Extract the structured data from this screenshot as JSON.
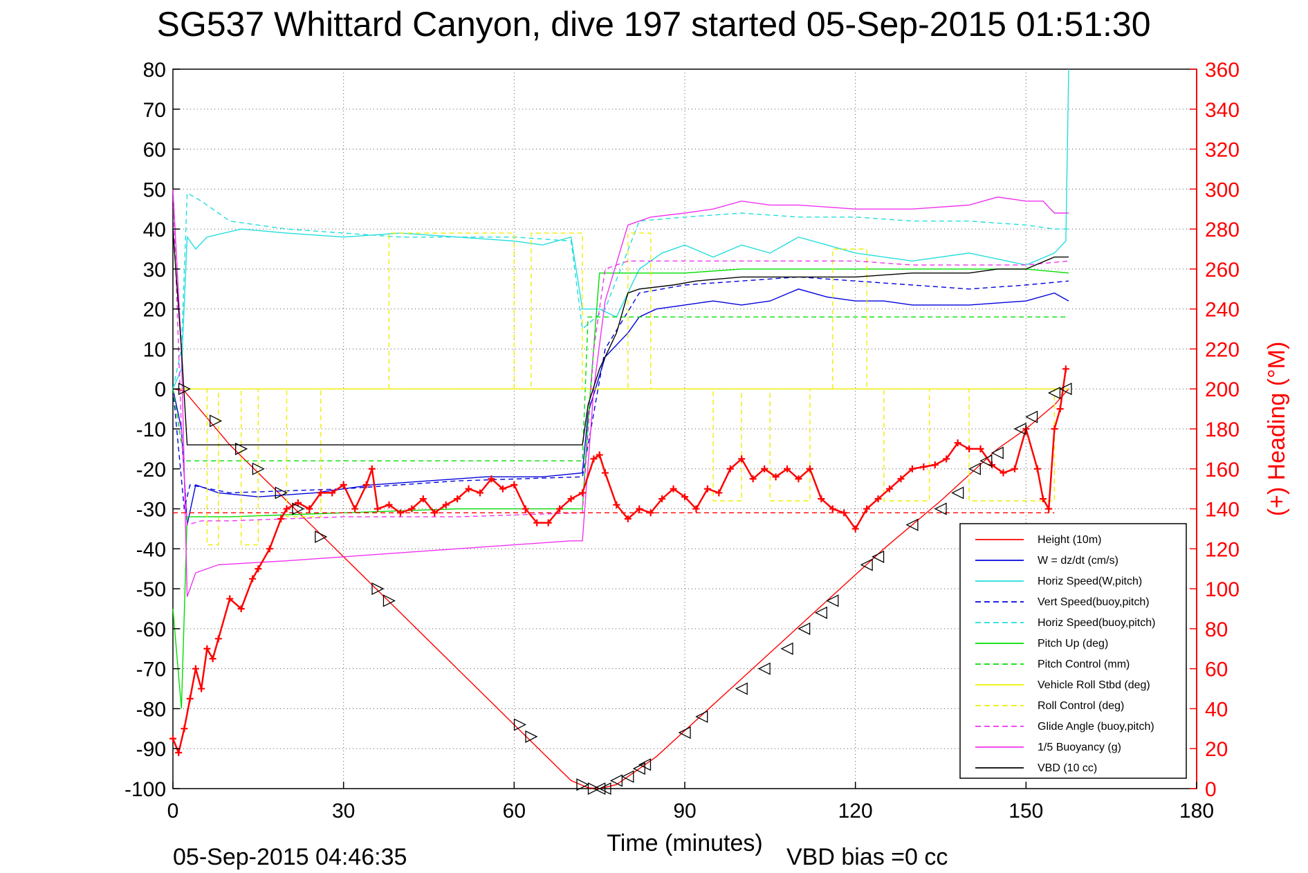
{
  "title": "SG537 Whittard Canyon, dive 197 started 05-Sep-2015 01:51:30",
  "footer": {
    "timestamp": "05-Sep-2015 04:46:35",
    "vbd_bias": "VBD bias =0 cc"
  },
  "chart_data": {
    "type": "line",
    "title": "SG537 Whittard Canyon, dive 197 started 05-Sep-2015 01:51:30",
    "xlabel": "Time (minutes)",
    "ylabel": "",
    "y2label": "(+) Heading (°M)",
    "xlim": [
      0,
      180
    ],
    "ylim": [
      -100,
      80
    ],
    "y2lim": [
      0,
      360
    ],
    "grid": true,
    "legend_position": "bottom-right",
    "x_ticks": [
      "0",
      "30",
      "60",
      "90",
      "120",
      "150",
      "180"
    ],
    "y_ticks": [
      "80",
      "70",
      "60",
      "50",
      "40",
      "30",
      "20",
      "10",
      "0",
      "-10",
      "-20",
      "-30",
      "-40",
      "-50",
      "-60",
      "-70",
      "-80",
      "-90",
      "-100"
    ],
    "y2_ticks": [
      "360",
      "340",
      "320",
      "300",
      "280",
      "260",
      "240",
      "220",
      "200",
      "180",
      "160",
      "140",
      "120",
      "100",
      "80",
      "60",
      "40",
      "20",
      "0"
    ],
    "series": [
      {
        "name": "Height (10m)",
        "color": "#ff0000",
        "dash": "solid",
        "axis": "left",
        "x": [
          0,
          2,
          10,
          20,
          30,
          40,
          50,
          60,
          65,
          70,
          73,
          75,
          78,
          85,
          95,
          105,
          115,
          125,
          135,
          145,
          150,
          155,
          157.5
        ],
        "y": [
          0,
          -0.5,
          -14,
          -28,
          -42,
          -56,
          -70,
          -84,
          -91,
          -98,
          -99.8,
          -100,
          -99,
          -92,
          -79,
          -66,
          -53,
          -40,
          -28,
          -15,
          -10,
          -4,
          0
        ]
      },
      {
        "name": "W = dz/dt (cm/s)",
        "color": "#0000dd",
        "dash": "solid",
        "axis": "left",
        "x": [
          0,
          1.5,
          2.5,
          4,
          8,
          15,
          25,
          35,
          45,
          55,
          65,
          72,
          73,
          76,
          80,
          82,
          85,
          90,
          95,
          100,
          105,
          110,
          115,
          120,
          125,
          130,
          140,
          150,
          155,
          157.5
        ],
        "y": [
          0,
          -10,
          -34,
          -24,
          -26,
          -27,
          -26,
          -24,
          -23,
          -22,
          -22,
          -21,
          -6,
          8,
          14,
          18,
          20,
          21,
          22,
          21,
          22,
          25,
          23,
          22,
          22,
          21,
          21,
          22,
          24,
          22
        ]
      },
      {
        "name": "Horiz Speed(W,pitch)",
        "color": "#22dddd",
        "dash": "solid",
        "axis": "left",
        "x": [
          0,
          1.5,
          2.5,
          4,
          6,
          12,
          20,
          30,
          40,
          50,
          60,
          65,
          70,
          72,
          75,
          78,
          82,
          86,
          90,
          95,
          100,
          105,
          110,
          115,
          120,
          130,
          140,
          150,
          155,
          157,
          157.5
        ],
        "y": [
          0,
          5,
          38,
          35,
          38,
          40,
          39,
          38,
          39,
          38,
          37,
          36,
          38,
          20,
          20,
          18,
          30,
          34,
          36,
          33,
          36,
          34,
          38,
          36,
          34,
          32,
          34,
          31,
          34,
          37,
          80
        ]
      },
      {
        "name": "Vert Speed(buoy,pitch)",
        "color": "#0000dd",
        "dash": "dashed",
        "axis": "left",
        "x": [
          0,
          2,
          3,
          10,
          30,
          50,
          72,
          76,
          82,
          90,
          100,
          110,
          120,
          130,
          140,
          150,
          157.5
        ],
        "y": [
          0,
          -30,
          -24,
          -26,
          -25,
          -23,
          -22,
          10,
          24,
          26,
          27,
          28,
          27,
          26,
          25,
          26,
          27
        ]
      },
      {
        "name": "Horiz Speed(buoy,pitch)",
        "color": "#22dddd",
        "dash": "dashed",
        "axis": "left",
        "x": [
          0,
          1.5,
          2.5,
          5,
          10,
          20,
          30,
          40,
          50,
          60,
          70,
          72,
          76,
          82,
          90,
          100,
          110,
          120,
          130,
          140,
          150,
          155,
          157.5
        ],
        "y": [
          0,
          10,
          49,
          47,
          42,
          40,
          39,
          38,
          38,
          38,
          37,
          15,
          20,
          42,
          43,
          44,
          43,
          43,
          42,
          42,
          41,
          40,
          40
        ]
      },
      {
        "name": "Pitch Up (deg)",
        "color": "#00dd00",
        "dash": "solid",
        "axis": "left",
        "x": [
          0,
          1.5,
          2.5,
          5,
          10,
          30,
          50,
          72,
          73,
          75,
          80,
          90,
          100,
          110,
          120,
          130,
          140,
          150,
          157.5
        ],
        "y": [
          -55,
          -80,
          -32,
          -32,
          -32,
          -31,
          -30,
          -30,
          -8,
          29,
          29,
          29,
          30,
          30,
          30,
          30,
          30,
          30,
          29
        ]
      },
      {
        "name": "Pitch Control (mm)",
        "color": "#00dd00",
        "dash": "dashed",
        "axis": "left",
        "x": [
          0,
          2,
          3,
          10,
          30,
          50,
          72,
          73,
          80,
          100,
          120,
          140,
          157.5
        ],
        "y": [
          0,
          -18,
          -18,
          -18,
          -18,
          -18,
          -18,
          18,
          18,
          18,
          18,
          18,
          18
        ]
      },
      {
        "name": "Vehicle Roll Stbd (deg)",
        "color": "#eeee00",
        "dash": "solid",
        "axis": "left",
        "x": [
          0,
          10,
          30,
          60,
          72,
          75,
          90,
          120,
          150,
          157.5
        ],
        "y": [
          0,
          0,
          0,
          0,
          0,
          0,
          0,
          0,
          0,
          0
        ]
      },
      {
        "name": "Roll Control (deg)",
        "color": "#eeee00",
        "dash": "dashed",
        "axis": "left",
        "x": [
          0,
          6,
          6,
          8,
          8,
          12,
          12,
          15,
          15,
          20,
          20,
          26,
          26,
          38,
          38,
          60,
          60,
          63,
          63,
          72,
          72,
          80,
          80,
          84,
          84,
          95,
          95,
          100,
          100,
          105,
          105,
          112,
          112,
          116,
          116,
          122,
          122,
          125,
          125,
          133,
          133,
          140,
          140,
          155,
          155,
          157.5
        ],
        "y": [
          0,
          0,
          -39,
          -39,
          0,
          0,
          -39,
          -39,
          0,
          0,
          -32,
          -32,
          0,
          0,
          39,
          39,
          0,
          0,
          39,
          39,
          0,
          0,
          39,
          39,
          0,
          0,
          -28,
          -28,
          0,
          0,
          -28,
          -28,
          0,
          0,
          35,
          35,
          0,
          0,
          -28,
          -28,
          0,
          0,
          -28,
          -28,
          0,
          0
        ]
      },
      {
        "name": "Glide Angle (buoy,pitch)",
        "color": "#ee33ee",
        "dash": "dashed",
        "axis": "left",
        "x": [
          0,
          1.5,
          2.5,
          5,
          10,
          30,
          50,
          72,
          74,
          76,
          80,
          90,
          100,
          110,
          120,
          130,
          140,
          150,
          157.5
        ],
        "y": [
          50,
          -10,
          -34,
          -33,
          -33,
          -32,
          -32,
          -31,
          10,
          30,
          32,
          32,
          32,
          32,
          32,
          31,
          31,
          31,
          32
        ]
      },
      {
        "name": "1/5 Buoyancy (g)",
        "color": "#ee33ee",
        "dash": "solid",
        "axis": "left",
        "x": [
          0,
          1.5,
          2.5,
          4,
          8,
          20,
          30,
          40,
          50,
          60,
          70,
          72,
          74,
          76,
          80,
          84,
          90,
          95,
          100,
          105,
          110,
          120,
          130,
          140,
          145,
          150,
          153,
          155,
          157.5
        ],
        "y": [
          50,
          10,
          -52,
          -46,
          -44,
          -43,
          -42,
          -41,
          -40,
          -39,
          -38,
          -38,
          0,
          22,
          41,
          43,
          44,
          45,
          47,
          46,
          46,
          45,
          45,
          46,
          48,
          47,
          47,
          44,
          44
        ]
      },
      {
        "name": "VBD (10 cc)",
        "color": "#000000",
        "dash": "solid",
        "axis": "left",
        "x": [
          0,
          1.5,
          2.5,
          30,
          60,
          72,
          73,
          75,
          78,
          80,
          82,
          88,
          92,
          100,
          110,
          120,
          130,
          140,
          145,
          150,
          155,
          157.5
        ],
        "y": [
          40,
          10,
          -14,
          -14,
          -14,
          -14,
          -4,
          5,
          14,
          24,
          25,
          26,
          27,
          28,
          28,
          28,
          29,
          29,
          30,
          30,
          33,
          33
        ]
      },
      {
        "name": "Heading",
        "color": "#ff0000",
        "dash": "markers",
        "axis": "right",
        "x": [
          0,
          1,
          2,
          3,
          4,
          5,
          6,
          7,
          8,
          10,
          12,
          14,
          15,
          17,
          19,
          20,
          22,
          24,
          26,
          28,
          30,
          32,
          34,
          35,
          36,
          38,
          40,
          42,
          44,
          46,
          48,
          50,
          52,
          54,
          56,
          58,
          60,
          62,
          64,
          66,
          68,
          70,
          72,
          74,
          75,
          76,
          78,
          80,
          82,
          84,
          86,
          88,
          90,
          92,
          94,
          96,
          98,
          100,
          102,
          104,
          106,
          108,
          110,
          112,
          114,
          116,
          118,
          120,
          122,
          124,
          126,
          128,
          130,
          132,
          134,
          136,
          138,
          140,
          142,
          144,
          146,
          148,
          150,
          152,
          153,
          154,
          155,
          156,
          157
        ],
        "y": [
          25,
          18,
          30,
          45,
          60,
          50,
          70,
          65,
          75,
          95,
          90,
          105,
          110,
          120,
          135,
          140,
          143,
          140,
          148,
          148,
          152,
          140,
          152,
          160,
          140,
          142,
          138,
          140,
          145,
          138,
          142,
          145,
          150,
          148,
          155,
          150,
          152,
          140,
          133,
          133,
          140,
          145,
          148,
          165,
          167,
          158,
          142,
          135,
          140,
          138,
          145,
          150,
          146,
          140,
          150,
          148,
          160,
          165,
          155,
          160,
          156,
          160,
          155,
          160,
          145,
          140,
          138,
          130,
          140,
          145,
          150,
          155,
          160,
          161,
          162,
          165,
          173,
          170,
          170,
          162,
          158,
          160,
          180,
          160,
          145,
          140,
          180,
          190,
          210
        ]
      },
      {
        "name": "Heading ref",
        "color": "#ff0000",
        "dash": "dashed",
        "axis": "right",
        "x": [
          0,
          155
        ],
        "y": [
          138,
          138
        ]
      }
    ],
    "marker_series": {
      "color": "#000000",
      "x": [
        2,
        7.5,
        12,
        15,
        19,
        22,
        26,
        36,
        38,
        61,
        63,
        72,
        74,
        75,
        76,
        78,
        80,
        82,
        83,
        90,
        93,
        100,
        104,
        108,
        111,
        114,
        116,
        122,
        124,
        130,
        135,
        138,
        141,
        143,
        145,
        149,
        151,
        155,
        157
      ],
      "y": [
        0,
        -8,
        -15,
        -20,
        -26,
        -30,
        -37,
        -50,
        -53,
        -84,
        -87,
        -99,
        -100,
        -100,
        -100,
        -98,
        -97,
        -95,
        -94,
        -86,
        -82,
        -75,
        -70,
        -65,
        -60,
        -56,
        -53,
        -44,
        -42,
        -34,
        -30,
        -26,
        -20,
        -18,
        -16,
        -10,
        -7,
        -1,
        0
      ]
    }
  },
  "legend": {
    "entries": [
      {
        "label": "Height (10m)",
        "color": "#ff0000",
        "dash": "solid"
      },
      {
        "label": "W = dz/dt (cm/s)",
        "color": "#0000dd",
        "dash": "solid"
      },
      {
        "label": "Horiz Speed(W,pitch)",
        "color": "#22dddd",
        "dash": "solid"
      },
      {
        "label": "Vert Speed(buoy,pitch)",
        "color": "#0000dd",
        "dash": "dashed"
      },
      {
        "label": "Horiz Speed(buoy,pitch)",
        "color": "#22dddd",
        "dash": "dashed"
      },
      {
        "label": "Pitch Up (deg)",
        "color": "#00dd00",
        "dash": "solid"
      },
      {
        "label": "Pitch Control (mm)",
        "color": "#00dd00",
        "dash": "dashed"
      },
      {
        "label": "Vehicle Roll Stbd (deg)",
        "color": "#eeee00",
        "dash": "solid"
      },
      {
        "label": "Roll Control (deg)",
        "color": "#eeee00",
        "dash": "dashed"
      },
      {
        "label": "Glide Angle (buoy,pitch)",
        "color": "#ee33ee",
        "dash": "dashed"
      },
      {
        "label": "1/5 Buoyancy (g)",
        "color": "#ee33ee",
        "dash": "solid"
      },
      {
        "label": "VBD (10 cc)",
        "color": "#000000",
        "dash": "solid"
      }
    ]
  }
}
